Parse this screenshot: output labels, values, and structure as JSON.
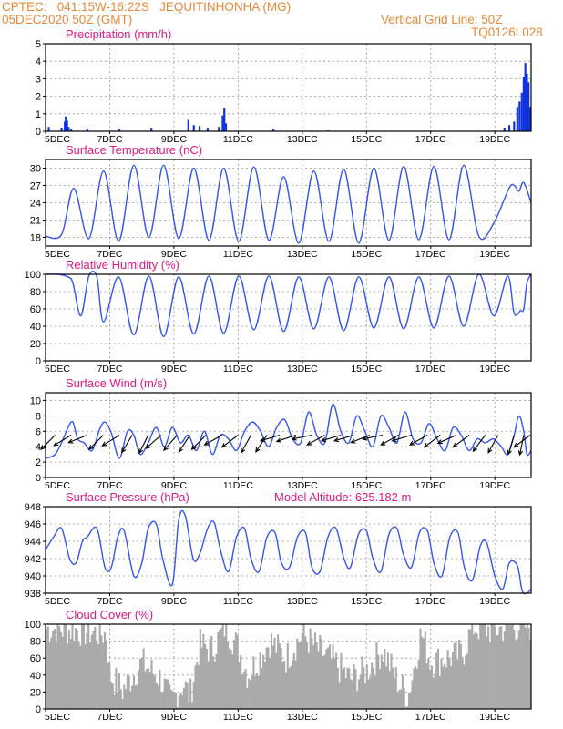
{
  "header": {
    "station": "CPTEC:   041:15W-16:22S   JEQUITINHONHA (MG)",
    "run": "05DEC2020 50Z (GMT)",
    "grid_line": "Vertical Grid Line: 50Z",
    "code": "TQ0126L028",
    "color": "#e8883a"
  },
  "style": {
    "line_color": "#3355ee",
    "title_color": "#dd1a88",
    "bar_color": "#aaaaaa",
    "grid_color": "#999999"
  },
  "x_axis": {
    "days": [
      "5DEC",
      "7DEC",
      "9DEC",
      "11DEC",
      "13DEC",
      "15DEC",
      "17DEC",
      "19DEC"
    ],
    "day_positions": [
      0,
      2,
      4,
      6,
      8,
      10,
      12,
      14
    ],
    "range": [
      0,
      15.13
    ]
  },
  "chart_data": [
    {
      "type": "bar",
      "title": "Precipitation (mm/h)",
      "ylim": [
        0,
        5
      ],
      "yticks": [
        0,
        1,
        2,
        3,
        4,
        5
      ],
      "xlabel": "",
      "ylabel": "",
      "events": [
        {
          "x": 0.1,
          "y": 0.25
        },
        {
          "x": 0.5,
          "y": 0.2
        },
        {
          "x": 0.6,
          "y": 0.55
        },
        {
          "x": 0.63,
          "y": 0.85
        },
        {
          "x": 0.67,
          "y": 0.6
        },
        {
          "x": 0.72,
          "y": 0.25
        },
        {
          "x": 0.8,
          "y": 0.1
        },
        {
          "x": 1.3,
          "y": 0.1
        },
        {
          "x": 2.3,
          "y": 0.1
        },
        {
          "x": 3.3,
          "y": 0.15
        },
        {
          "x": 4.45,
          "y": 0.65
        },
        {
          "x": 4.62,
          "y": 0.35
        },
        {
          "x": 4.8,
          "y": 0.3
        },
        {
          "x": 5.05,
          "y": 0.15
        },
        {
          "x": 5.4,
          "y": 0.25
        },
        {
          "x": 5.52,
          "y": 0.9
        },
        {
          "x": 5.57,
          "y": 1.3
        },
        {
          "x": 5.62,
          "y": 0.45
        },
        {
          "x": 7.1,
          "y": 0.1
        },
        {
          "x": 8.8,
          "y": 0.05
        },
        {
          "x": 14.3,
          "y": 0.2
        },
        {
          "x": 14.45,
          "y": 0.35
        },
        {
          "x": 14.6,
          "y": 0.55
        },
        {
          "x": 14.7,
          "y": 1.4
        },
        {
          "x": 14.77,
          "y": 1.7
        },
        {
          "x": 14.84,
          "y": 2.2
        },
        {
          "x": 14.9,
          "y": 3.1
        },
        {
          "x": 14.95,
          "y": 3.9
        },
        {
          "x": 15.0,
          "y": 3.3
        },
        {
          "x": 15.05,
          "y": 2.8
        },
        {
          "x": 15.1,
          "y": 1.4
        }
      ]
    },
    {
      "type": "line",
      "title": "Surface Temperature (nC)",
      "ylim": [
        16.5,
        31.5
      ],
      "yticks": [
        18,
        21,
        24,
        27,
        30
      ],
      "xlabel": "",
      "ylabel": "",
      "x": [
        0,
        0.5,
        0.88,
        1.35,
        1.81,
        2.28,
        2.75,
        3.22,
        3.68,
        4.15,
        4.62,
        5.09,
        5.55,
        6.02,
        6.49,
        6.96,
        7.42,
        7.89,
        8.36,
        8.83,
        9.29,
        9.76,
        10.23,
        10.7,
        11.16,
        11.63,
        12.1,
        12.57,
        13.03,
        13.5,
        13.97,
        14.44,
        14.6,
        14.75,
        14.9,
        15.13
      ],
      "y": [
        18.2,
        18.5,
        26.5,
        17.8,
        29.5,
        17.3,
        30.5,
        18.0,
        30.5,
        17.8,
        30.0,
        17.5,
        30.0,
        17.3,
        30.2,
        17.5,
        28.5,
        17.0,
        29.5,
        17.3,
        29.8,
        17.0,
        30.0,
        17.5,
        30.3,
        17.6,
        30.3,
        17.6,
        30.5,
        18.2,
        20.5,
        26.5,
        27.0,
        26.0,
        27.5,
        24.0
      ]
    },
    {
      "type": "line",
      "title": "Relative Humidity (%)",
      "ylim": [
        0,
        100
      ],
      "yticks": [
        0,
        20,
        40,
        60,
        80,
        100
      ],
      "xlabel": "",
      "ylabel": "",
      "x": [
        0,
        0.4,
        0.7,
        0.85,
        1.1,
        1.35,
        1.6,
        1.81,
        2.28,
        2.75,
        3.22,
        3.68,
        4.15,
        4.62,
        5.09,
        5.55,
        6.02,
        6.49,
        6.96,
        7.42,
        7.89,
        8.36,
        8.83,
        9.29,
        9.76,
        10.23,
        10.7,
        11.16,
        11.63,
        12.1,
        12.57,
        13.03,
        13.5,
        13.97,
        14.4,
        14.6,
        14.8,
        14.9,
        15.0,
        15.13
      ],
      "y": [
        100,
        100,
        97,
        90,
        52,
        98,
        97,
        45,
        97,
        30,
        98,
        28,
        97,
        31,
        98,
        32,
        98,
        36,
        98,
        34,
        97,
        37,
        97,
        35,
        97,
        38,
        97,
        37,
        97,
        38,
        98,
        40,
        100,
        52,
        98,
        55,
        58,
        60,
        90,
        100
      ]
    },
    {
      "type": "line",
      "title": "Surface Wind (m/s)",
      "ylim": [
        0,
        11
      ],
      "yticks": [
        0,
        2,
        4,
        6,
        8,
        10
      ],
      "xlabel": "",
      "ylabel": "",
      "x": [
        0,
        0.3,
        0.55,
        0.7,
        0.85,
        1.0,
        1.2,
        1.45,
        1.68,
        1.85,
        2.05,
        2.3,
        2.55,
        2.75,
        2.95,
        3.2,
        3.45,
        3.7,
        3.95,
        4.2,
        4.45,
        4.7,
        4.95,
        5.2,
        5.45,
        5.7,
        5.95,
        6.2,
        6.45,
        6.7,
        6.95,
        7.2,
        7.45,
        7.7,
        7.95,
        8.2,
        8.45,
        8.7,
        8.95,
        9.2,
        9.45,
        9.7,
        9.95,
        10.2,
        10.45,
        10.7,
        10.95,
        11.2,
        11.45,
        11.7,
        11.95,
        12.2,
        12.45,
        12.7,
        12.95,
        13.2,
        13.45,
        13.7,
        13.95,
        14.2,
        14.4,
        14.6,
        14.75,
        14.9,
        15.0,
        15.13
      ],
      "y": [
        2.5,
        3.0,
        5.0,
        6.5,
        7.2,
        5.0,
        4.5,
        3.5,
        6.2,
        7.2,
        5.8,
        2.5,
        6.0,
        5.5,
        3.0,
        4.5,
        6.5,
        4.0,
        6.5,
        4.5,
        5.5,
        3.5,
        6.0,
        3.0,
        5.5,
        5.0,
        3.5,
        6.0,
        7.2,
        6.0,
        4.0,
        6.5,
        7.5,
        5.0,
        4.5,
        8.5,
        5.5,
        4.5,
        9.5,
        6.0,
        4.5,
        8.0,
        6.0,
        4.0,
        8.0,
        6.5,
        4.5,
        8.5,
        5.0,
        4.5,
        7.0,
        5.0,
        3.5,
        6.5,
        5.5,
        3.5,
        5.0,
        4.5,
        5.0,
        4.0,
        3.0,
        5.5,
        8.0,
        6.0,
        3.0,
        3.5
      ],
      "arrows": [
        {
          "x": 0.3,
          "u": -1,
          "v": -1
        },
        {
          "x": 0.8,
          "u": -1,
          "v": -0.6
        },
        {
          "x": 1.3,
          "u": -1,
          "v": -0.4
        },
        {
          "x": 1.8,
          "u": -0.8,
          "v": -0.8
        },
        {
          "x": 2.3,
          "u": -0.8,
          "v": -0.5
        },
        {
          "x": 2.7,
          "u": -0.6,
          "v": -1
        },
        {
          "x": 3.2,
          "u": -0.5,
          "v": -1
        },
        {
          "x": 3.6,
          "u": -0.8,
          "v": -0.7
        },
        {
          "x": 4.1,
          "u": -0.7,
          "v": -0.8
        },
        {
          "x": 4.5,
          "u": -0.6,
          "v": -0.9
        },
        {
          "x": 5.0,
          "u": -0.7,
          "v": -0.7
        },
        {
          "x": 5.5,
          "u": -0.9,
          "v": -0.5
        },
        {
          "x": 6.0,
          "u": -0.8,
          "v": -0.6
        },
        {
          "x": 6.4,
          "u": -0.5,
          "v": -0.9
        },
        {
          "x": 6.9,
          "u": -0.6,
          "v": -0.9
        },
        {
          "x": 7.3,
          "u": -1,
          "v": -0.3
        },
        {
          "x": 7.8,
          "u": -0.9,
          "v": -0.3
        },
        {
          "x": 8.3,
          "u": -1,
          "v": -0.2
        },
        {
          "x": 8.7,
          "u": -0.9,
          "v": -0.5
        },
        {
          "x": 9.2,
          "u": -1,
          "v": -0.3
        },
        {
          "x": 9.6,
          "u": -1,
          "v": -0.3
        },
        {
          "x": 10.1,
          "u": -1,
          "v": -0.4
        },
        {
          "x": 10.5,
          "u": -1,
          "v": -0.2
        },
        {
          "x": 11.0,
          "u": -0.9,
          "v": -0.5
        },
        {
          "x": 11.4,
          "u": -1,
          "v": -0.3
        },
        {
          "x": 11.9,
          "u": -0.9,
          "v": -0.5
        },
        {
          "x": 12.3,
          "u": -0.8,
          "v": -0.6
        },
        {
          "x": 12.8,
          "u": -0.9,
          "v": -0.4
        },
        {
          "x": 13.2,
          "u": -0.8,
          "v": -0.6
        },
        {
          "x": 13.7,
          "u": -0.6,
          "v": -0.8
        },
        {
          "x": 14.1,
          "u": -0.5,
          "v": -0.9
        },
        {
          "x": 14.6,
          "u": -0.3,
          "v": -1
        },
        {
          "x": 14.9,
          "u": -0.2,
          "v": -1
        },
        {
          "x": 15.1,
          "u": -0.8,
          "v": -0.6
        }
      ]
    },
    {
      "type": "line",
      "title": "Surface Pressure (hPa)",
      "annotation": "Model Altitude: 625.182 m",
      "ylim": [
        938,
        948
      ],
      "yticks": [
        938,
        940,
        942,
        944,
        946,
        948
      ],
      "xlabel": "",
      "ylabel": "",
      "x": [
        0,
        0.25,
        0.5,
        0.75,
        0.95,
        1.15,
        1.3,
        1.6,
        1.85,
        2.05,
        2.25,
        2.45,
        2.75,
        3.0,
        3.2,
        3.45,
        3.65,
        3.95,
        4.15,
        4.35,
        4.6,
        4.8,
        5.05,
        5.25,
        5.45,
        5.7,
        5.95,
        6.2,
        6.4,
        6.65,
        6.9,
        7.15,
        7.35,
        7.6,
        7.85,
        8.1,
        8.3,
        8.55,
        8.8,
        9.05,
        9.3,
        9.5,
        9.75,
        10.0,
        10.2,
        10.45,
        10.7,
        10.95,
        11.15,
        11.4,
        11.65,
        11.9,
        12.1,
        12.35,
        12.6,
        12.85,
        13.05,
        13.3,
        13.55,
        13.75,
        14.0,
        14.25,
        14.45,
        14.7,
        14.85,
        15.0,
        15.13
      ],
      "y": [
        943.0,
        944.5,
        945.5,
        942.0,
        941.5,
        944.0,
        944.5,
        945.5,
        941.0,
        941.0,
        944.5,
        945.2,
        940.0,
        941.5,
        945.5,
        946.0,
        942.0,
        939.0,
        946.5,
        947.0,
        942.0,
        942.5,
        945.5,
        946.2,
        943.0,
        940.5,
        944.5,
        945.5,
        942.0,
        940.5,
        944.5,
        945.0,
        941.5,
        941.0,
        944.5,
        945.0,
        941.0,
        940.5,
        944.5,
        945.5,
        942.0,
        941.0,
        944.8,
        945.2,
        942.0,
        940.5,
        944.8,
        945.5,
        942.5,
        941.0,
        945.0,
        945.2,
        941.5,
        940.0,
        944.5,
        945.0,
        941.0,
        939.5,
        943.5,
        943.8,
        940.0,
        938.5,
        941.5,
        941.2,
        938.3,
        938.0,
        938.5
      ]
    },
    {
      "type": "bar",
      "title": "Cloud Cover (%)",
      "ylim": [
        0,
        100
      ],
      "yticks": [
        0,
        20,
        40,
        60,
        80,
        100
      ],
      "xlabel": "",
      "ylabel": "",
      "cover_profile": {
        "knots": [
          [
            0,
            95
          ],
          [
            1.0,
            93
          ],
          [
            1.9,
            88
          ],
          [
            2.0,
            40
          ],
          [
            2.4,
            22
          ],
          [
            3.0,
            55
          ],
          [
            3.6,
            35
          ],
          [
            3.9,
            8
          ],
          [
            4.3,
            30
          ],
          [
            4.5,
            15
          ],
          [
            4.8,
            75
          ],
          [
            5.2,
            70
          ],
          [
            5.6,
            98
          ],
          [
            6.0,
            72
          ],
          [
            6.3,
            40
          ],
          [
            7.0,
            80
          ],
          [
            7.5,
            60
          ],
          [
            8.0,
            88
          ],
          [
            8.5,
            70
          ],
          [
            9.0,
            55
          ],
          [
            9.5,
            35
          ],
          [
            10.0,
            45
          ],
          [
            10.5,
            70
          ],
          [
            11.0,
            30
          ],
          [
            11.3,
            15
          ],
          [
            11.7,
            90
          ],
          [
            12.0,
            55
          ],
          [
            12.5,
            60
          ],
          [
            13.0,
            65
          ],
          [
            13.3,
            97
          ],
          [
            14.0,
            93
          ],
          [
            14.5,
            98
          ],
          [
            15.13,
            98
          ]
        ]
      }
    }
  ]
}
